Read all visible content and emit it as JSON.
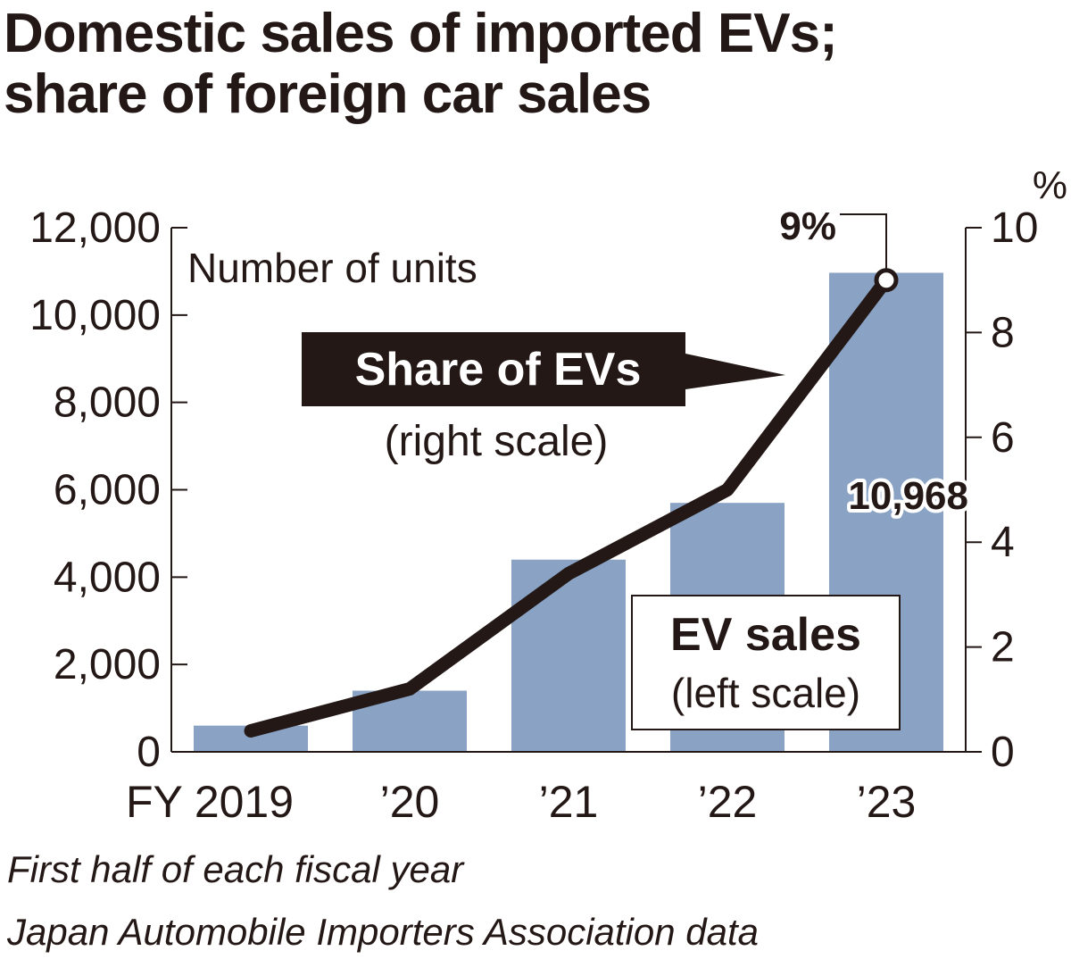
{
  "chart_data": {
    "type": "bar",
    "title_lines": [
      "Domestic sales of imported EVs;",
      "share of foreign car sales"
    ],
    "categories": [
      "FY 2019",
      "’20",
      "’21",
      "’22",
      "’23"
    ],
    "bar_series": {
      "name": "EV sales",
      "sublabel": "(left scale)",
      "values": [
        600,
        1400,
        4400,
        5700,
        10968
      ],
      "color": "#8aa3c5"
    },
    "line_series": {
      "name": "Share of EVs",
      "sublabel": "(right scale)",
      "values": [
        0.4,
        1.2,
        3.4,
        5.0,
        9.0
      ],
      "color": "#231815"
    },
    "left_axis": {
      "label": "Number of units",
      "ylim": [
        0,
        12000
      ],
      "ticks": [
        "0",
        "2,000",
        "4,000",
        "6,000",
        "8,000",
        "10,000",
        "12,000"
      ]
    },
    "right_axis": {
      "unit": "%",
      "ylim": [
        0,
        10
      ],
      "ticks": [
        "0",
        "2",
        "4",
        "6",
        "8",
        "10"
      ]
    },
    "annotations": {
      "last_bar_value": "10,968",
      "last_point_value": "9%"
    },
    "grid": false
  },
  "notes": [
    "First half of each fiscal year",
    "Japan Automobile Importers Association data"
  ]
}
